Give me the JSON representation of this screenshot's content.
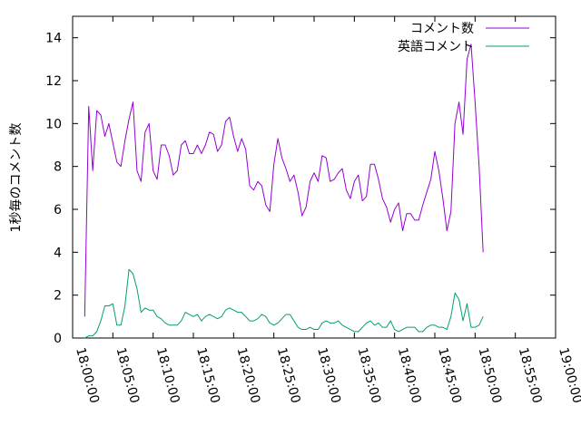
{
  "chart_data": {
    "type": "line",
    "ylabel": "1秒毎のコメント数",
    "xlabel": "",
    "ylim": [
      0,
      15
    ],
    "xlim": [
      "18:00:00",
      "19:00:00"
    ],
    "yticks": [
      0,
      2,
      4,
      6,
      8,
      10,
      12,
      14
    ],
    "xticks": [
      "18:00:00",
      "18:05:00",
      "18:10:00",
      "18:15:00",
      "18:20:00",
      "18:25:00",
      "18:30:00",
      "18:35:00",
      "18:40:00",
      "18:45:00",
      "18:50:00",
      "18:55:00",
      "19:00:00"
    ],
    "grid": false,
    "legend_position": "top-right",
    "series": [
      {
        "name": "コメント数",
        "color": "#9400d3",
        "points": [
          [
            "18:01:30",
            1.0
          ],
          [
            "18:02:00",
            10.8
          ],
          [
            "18:02:30",
            7.8
          ],
          [
            "18:03:00",
            10.6
          ],
          [
            "18:03:30",
            10.4
          ],
          [
            "18:04:00",
            9.4
          ],
          [
            "18:04:30",
            10.0
          ],
          [
            "18:05:00",
            9.1
          ],
          [
            "18:05:30",
            8.2
          ],
          [
            "18:06:00",
            8.0
          ],
          [
            "18:06:30",
            9.2
          ],
          [
            "18:07:00",
            10.2
          ],
          [
            "18:07:30",
            11.0
          ],
          [
            "18:08:00",
            7.8
          ],
          [
            "18:08:30",
            7.3
          ],
          [
            "18:09:00",
            9.6
          ],
          [
            "18:09:30",
            10.0
          ],
          [
            "18:10:00",
            7.8
          ],
          [
            "18:10:30",
            7.4
          ],
          [
            "18:11:00",
            9.0
          ],
          [
            "18:11:30",
            9.0
          ],
          [
            "18:12:00",
            8.5
          ],
          [
            "18:12:30",
            7.6
          ],
          [
            "18:13:00",
            7.8
          ],
          [
            "18:13:30",
            9.0
          ],
          [
            "18:14:00",
            9.2
          ],
          [
            "18:14:30",
            8.6
          ],
          [
            "18:15:00",
            8.6
          ],
          [
            "18:15:30",
            9.0
          ],
          [
            "18:16:00",
            8.6
          ],
          [
            "18:16:30",
            9.0
          ],
          [
            "18:17:00",
            9.6
          ],
          [
            "18:17:30",
            9.5
          ],
          [
            "18:18:00",
            8.7
          ],
          [
            "18:18:30",
            9.0
          ],
          [
            "18:19:00",
            10.1
          ],
          [
            "18:19:30",
            10.3
          ],
          [
            "18:20:00",
            9.4
          ],
          [
            "18:20:30",
            8.7
          ],
          [
            "18:21:00",
            9.3
          ],
          [
            "18:21:30",
            8.8
          ],
          [
            "18:22:00",
            7.1
          ],
          [
            "18:22:30",
            6.9
          ],
          [
            "18:23:00",
            7.3
          ],
          [
            "18:23:30",
            7.1
          ],
          [
            "18:24:00",
            6.2
          ],
          [
            "18:24:30",
            5.9
          ],
          [
            "18:25:00",
            8.1
          ],
          [
            "18:25:30",
            9.3
          ],
          [
            "18:26:00",
            8.4
          ],
          [
            "18:26:30",
            7.9
          ],
          [
            "18:27:00",
            7.3
          ],
          [
            "18:27:30",
            7.6
          ],
          [
            "18:28:00",
            6.8
          ],
          [
            "18:28:30",
            5.7
          ],
          [
            "18:29:00",
            6.1
          ],
          [
            "18:29:30",
            7.3
          ],
          [
            "18:30:00",
            7.7
          ],
          [
            "18:30:30",
            7.3
          ],
          [
            "18:31:00",
            8.5
          ],
          [
            "18:31:30",
            8.4
          ],
          [
            "18:32:00",
            7.3
          ],
          [
            "18:32:30",
            7.4
          ],
          [
            "18:33:00",
            7.7
          ],
          [
            "18:33:30",
            7.9
          ],
          [
            "18:34:00",
            6.9
          ],
          [
            "18:34:30",
            6.5
          ],
          [
            "18:35:00",
            7.3
          ],
          [
            "18:35:30",
            7.6
          ],
          [
            "18:36:00",
            6.4
          ],
          [
            "18:36:30",
            6.6
          ],
          [
            "18:37:00",
            8.1
          ],
          [
            "18:37:30",
            8.1
          ],
          [
            "18:38:00",
            7.4
          ],
          [
            "18:38:30",
            6.5
          ],
          [
            "18:39:00",
            6.1
          ],
          [
            "18:39:30",
            5.4
          ],
          [
            "18:40:00",
            6.0
          ],
          [
            "18:40:30",
            6.3
          ],
          [
            "18:41:00",
            5.0
          ],
          [
            "18:41:30",
            5.8
          ],
          [
            "18:42:00",
            5.8
          ],
          [
            "18:42:30",
            5.5
          ],
          [
            "18:43:00",
            5.5
          ],
          [
            "18:43:30",
            6.2
          ],
          [
            "18:44:00",
            6.8
          ],
          [
            "18:44:30",
            7.4
          ],
          [
            "18:45:00",
            8.7
          ],
          [
            "18:45:30",
            7.8
          ],
          [
            "18:46:00",
            6.5
          ],
          [
            "18:46:30",
            5.0
          ],
          [
            "18:47:00",
            5.9
          ],
          [
            "18:47:30",
            10.0
          ],
          [
            "18:48:00",
            11.0
          ],
          [
            "18:48:30",
            9.5
          ],
          [
            "18:49:00",
            13.0
          ],
          [
            "18:49:30",
            13.7
          ],
          [
            "18:50:00",
            11.0
          ],
          [
            "18:50:30",
            8.0
          ],
          [
            "18:51:00",
            4.0
          ]
        ]
      },
      {
        "name": "英語コメント",
        "color": "#009e73",
        "points": [
          [
            "18:01:30",
            0.0
          ],
          [
            "18:02:00",
            0.1
          ],
          [
            "18:02:30",
            0.1
          ],
          [
            "18:03:00",
            0.3
          ],
          [
            "18:03:30",
            0.8
          ],
          [
            "18:04:00",
            1.5
          ],
          [
            "18:04:30",
            1.5
          ],
          [
            "18:05:00",
            1.6
          ],
          [
            "18:05:30",
            0.6
          ],
          [
            "18:06:00",
            0.6
          ],
          [
            "18:06:30",
            1.5
          ],
          [
            "18:07:00",
            3.2
          ],
          [
            "18:07:30",
            3.0
          ],
          [
            "18:08:00",
            2.3
          ],
          [
            "18:08:30",
            1.2
          ],
          [
            "18:09:00",
            1.4
          ],
          [
            "18:09:30",
            1.3
          ],
          [
            "18:10:00",
            1.3
          ],
          [
            "18:10:30",
            1.0
          ],
          [
            "18:11:00",
            0.9
          ],
          [
            "18:11:30",
            0.7
          ],
          [
            "18:12:00",
            0.6
          ],
          [
            "18:12:30",
            0.6
          ],
          [
            "18:13:00",
            0.6
          ],
          [
            "18:13:30",
            0.8
          ],
          [
            "18:14:00",
            1.2
          ],
          [
            "18:14:30",
            1.1
          ],
          [
            "18:15:00",
            1.0
          ],
          [
            "18:15:30",
            1.1
          ],
          [
            "18:16:00",
            0.8
          ],
          [
            "18:16:30",
            1.0
          ],
          [
            "18:17:00",
            1.1
          ],
          [
            "18:17:30",
            1.0
          ],
          [
            "18:18:00",
            0.9
          ],
          [
            "18:18:30",
            1.0
          ],
          [
            "18:19:00",
            1.3
          ],
          [
            "18:19:30",
            1.4
          ],
          [
            "18:20:00",
            1.3
          ],
          [
            "18:20:30",
            1.2
          ],
          [
            "18:21:00",
            1.2
          ],
          [
            "18:21:30",
            1.0
          ],
          [
            "18:22:00",
            0.8
          ],
          [
            "18:22:30",
            0.8
          ],
          [
            "18:23:00",
            0.9
          ],
          [
            "18:23:30",
            1.1
          ],
          [
            "18:24:00",
            1.0
          ],
          [
            "18:24:30",
            0.7
          ],
          [
            "18:25:00",
            0.6
          ],
          [
            "18:25:30",
            0.7
          ],
          [
            "18:26:00",
            0.9
          ],
          [
            "18:26:30",
            1.1
          ],
          [
            "18:27:00",
            1.1
          ],
          [
            "18:27:30",
            0.8
          ],
          [
            "18:28:00",
            0.5
          ],
          [
            "18:28:30",
            0.4
          ],
          [
            "18:29:00",
            0.4
          ],
          [
            "18:29:30",
            0.5
          ],
          [
            "18:30:00",
            0.4
          ],
          [
            "18:30:30",
            0.4
          ],
          [
            "18:31:00",
            0.7
          ],
          [
            "18:31:30",
            0.8
          ],
          [
            "18:32:00",
            0.7
          ],
          [
            "18:32:30",
            0.7
          ],
          [
            "18:33:00",
            0.8
          ],
          [
            "18:33:30",
            0.6
          ],
          [
            "18:34:00",
            0.5
          ],
          [
            "18:34:30",
            0.4
          ],
          [
            "18:35:00",
            0.3
          ],
          [
            "18:35:30",
            0.3
          ],
          [
            "18:36:00",
            0.5
          ],
          [
            "18:36:30",
            0.7
          ],
          [
            "18:37:00",
            0.8
          ],
          [
            "18:37:30",
            0.6
          ],
          [
            "18:38:00",
            0.7
          ],
          [
            "18:38:30",
            0.5
          ],
          [
            "18:39:00",
            0.5
          ],
          [
            "18:39:30",
            0.8
          ],
          [
            "18:40:00",
            0.4
          ],
          [
            "18:40:30",
            0.3
          ],
          [
            "18:41:00",
            0.4
          ],
          [
            "18:41:30",
            0.5
          ],
          [
            "18:42:00",
            0.5
          ],
          [
            "18:42:30",
            0.5
          ],
          [
            "18:43:00",
            0.3
          ],
          [
            "18:43:30",
            0.3
          ],
          [
            "18:44:00",
            0.5
          ],
          [
            "18:44:30",
            0.6
          ],
          [
            "18:45:00",
            0.6
          ],
          [
            "18:45:30",
            0.5
          ],
          [
            "18:46:00",
            0.5
          ],
          [
            "18:46:30",
            0.4
          ],
          [
            "18:47:00",
            1.0
          ],
          [
            "18:47:30",
            2.1
          ],
          [
            "18:48:00",
            1.8
          ],
          [
            "18:48:30",
            0.8
          ],
          [
            "18:49:00",
            1.6
          ],
          [
            "18:49:30",
            0.5
          ],
          [
            "18:50:00",
            0.5
          ],
          [
            "18:50:30",
            0.6
          ],
          [
            "18:51:00",
            1.0
          ]
        ]
      }
    ]
  }
}
